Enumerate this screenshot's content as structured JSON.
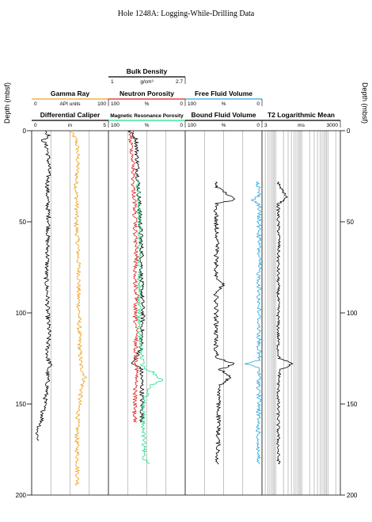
{
  "title": "Hole 1248A: Logging-While-Drilling Data",
  "depth_axis": {
    "label": "Depth (mbsf)",
    "ticks": [
      0,
      50,
      100,
      150,
      200
    ],
    "range": [
      0,
      200
    ]
  },
  "colors": {
    "gamma_ray": "#f0a020",
    "caliper": "#000000",
    "density": "#000000",
    "neutron": "#e02020",
    "mrp": "#22dd88",
    "ffv": "#2aa8e0",
    "bfv": "#000000",
    "t2": "#000000"
  },
  "tracks": [
    {
      "id": "track1",
      "headers": [
        {
          "title": "Gamma Ray",
          "min": "0",
          "unit": "API units",
          "max": "100",
          "color": "#f0a020"
        },
        {
          "title": "Differential Caliper",
          "min": "0",
          "unit": "in",
          "max": "5",
          "color": "#000000"
        }
      ]
    },
    {
      "id": "track2",
      "headers": [
        {
          "title": "Bulk Density",
          "min": "1",
          "unit": "g/cm³",
          "max": "2.7",
          "color": "#000000"
        },
        {
          "title": "Neutron Porosity",
          "min": "100",
          "unit": "%",
          "max": "0",
          "color": "#e02020"
        },
        {
          "title": "Magnetic Resonance Porosity",
          "min": "100",
          "unit": "%",
          "max": "0",
          "color": "#22dd88"
        }
      ]
    },
    {
      "id": "track3",
      "headers": [
        {
          "title": "Free Fluid Volume",
          "min": "100",
          "unit": "%",
          "max": "0",
          "color": "#2aa8e0"
        },
        {
          "title": "Bound Fluid Volume",
          "min": "100",
          "unit": "%",
          "max": "0",
          "color": "#000000"
        }
      ]
    },
    {
      "id": "track4",
      "headers": [
        {
          "title": "T2 Logarithmic Mean",
          "min": "3",
          "unit": "ms",
          "max": "3000",
          "color": "#000000"
        }
      ]
    }
  ],
  "chart_data": {
    "type": "line",
    "y_axis": "depth",
    "series": [
      {
        "name": "Gamma Ray",
        "track": 1,
        "scale": [
          0,
          100
        ],
        "unit": "API units",
        "color": "#f0a020",
        "depth": [
          0,
          5,
          10,
          20,
          30,
          40,
          50,
          60,
          70,
          80,
          90,
          100,
          110,
          120,
          128,
          131,
          135,
          140,
          150,
          160,
          170,
          180,
          190,
          195
        ],
        "values": [
          50,
          58,
          60,
          60,
          58,
          59,
          58,
          60,
          61,
          62,
          61,
          62,
          62,
          63,
          64,
          66,
          70,
          66,
          62,
          60,
          59,
          60,
          60,
          60
        ]
      },
      {
        "name": "Differential Caliper",
        "track": 1,
        "scale": [
          0,
          5
        ],
        "unit": "in",
        "color": "#000000",
        "depth": [
          0,
          3,
          5,
          10,
          20,
          30,
          40,
          50,
          60,
          70,
          80,
          90,
          100,
          110,
          120,
          125,
          128,
          132,
          140,
          150,
          160,
          165,
          170
        ],
        "values": [
          0.9,
          1.1,
          0.7,
          1.0,
          1.1,
          1.0,
          1.0,
          1.1,
          1.0,
          1.0,
          0.9,
          1.0,
          1.0,
          1.1,
          1.0,
          1.0,
          1.2,
          1.0,
          1.0,
          0.8,
          0.6,
          0.3,
          0.4
        ]
      },
      {
        "name": "Bulk Density",
        "track": 2,
        "scale": [
          1,
          2.7
        ],
        "unit": "g/cm³",
        "color": "#000000",
        "depth": [
          0,
          5,
          10,
          20,
          30,
          40,
          50,
          60,
          70,
          80,
          90,
          100,
          110,
          120,
          128,
          130,
          140,
          150,
          160
        ],
        "values": [
          1.45,
          1.62,
          1.62,
          1.64,
          1.66,
          1.68,
          1.7,
          1.72,
          1.74,
          1.72,
          1.74,
          1.76,
          1.74,
          1.72,
          1.5,
          1.72,
          1.74,
          1.74,
          1.74
        ]
      },
      {
        "name": "Neutron Porosity",
        "track": 2,
        "scale": [
          100,
          0
        ],
        "unit": "%",
        "color": "#e02020",
        "depth": [
          0,
          5,
          10,
          20,
          30,
          40,
          50,
          60,
          70,
          80,
          90,
          100,
          110,
          120,
          130,
          140,
          150,
          160
        ],
        "values": [
          70,
          72,
          70,
          68,
          68,
          66,
          66,
          65,
          64,
          66,
          64,
          66,
          64,
          65,
          63,
          65,
          66,
          66
        ]
      },
      {
        "name": "Magnetic Resonance Porosity",
        "track": 2,
        "scale": [
          100,
          0
        ],
        "unit": "%",
        "color": "#22dd88",
        "depth": [
          27,
          30,
          40,
          50,
          60,
          66,
          70,
          80,
          90,
          100,
          110,
          120,
          130,
          133,
          137,
          140,
          150,
          160,
          170,
          180,
          183
        ],
        "values": [
          60,
          62,
          60,
          60,
          60,
          58,
          60,
          60,
          60,
          60,
          60,
          58,
          55,
          40,
          30,
          45,
          55,
          55,
          54,
          54,
          45
        ]
      },
      {
        "name": "Free Fluid Volume",
        "track": 3,
        "scale": [
          100,
          0
        ],
        "unit": "%",
        "color": "#2aa8e0",
        "depth": [
          28,
          36,
          38,
          40,
          50,
          60,
          70,
          80,
          90,
          100,
          110,
          120,
          126,
          128,
          130,
          140,
          150,
          160,
          170,
          183
        ],
        "values": [
          4,
          3,
          12,
          3,
          3,
          3,
          3,
          3,
          3,
          3,
          3,
          3,
          3,
          22,
          3,
          3,
          3,
          4,
          4,
          4
        ]
      },
      {
        "name": "Bound Fluid Volume",
        "track": 3,
        "scale": [
          100,
          0
        ],
        "unit": "%",
        "color": "#000000",
        "depth": [
          28,
          30,
          38,
          40,
          50,
          60,
          70,
          80,
          84,
          90,
          100,
          110,
          120,
          125,
          128,
          131,
          135,
          140,
          150,
          160,
          170,
          180,
          183
        ],
        "values": [
          60,
          62,
          35,
          60,
          60,
          58,
          60,
          60,
          50,
          60,
          60,
          60,
          60,
          58,
          35,
          55,
          40,
          55,
          57,
          57,
          57,
          58,
          58
        ]
      },
      {
        "name": "T2 Logarithmic Mean",
        "track": 4,
        "scale": [
          3,
          3000
        ],
        "log": true,
        "unit": "ms",
        "color": "#000000",
        "depth": [
          28,
          30,
          37,
          40,
          50,
          60,
          70,
          80,
          90,
          100,
          110,
          120,
          125,
          128,
          131,
          140,
          150,
          160,
          170,
          180,
          183
        ],
        "values": [
          12,
          13,
          25,
          12,
          12,
          13,
          12,
          12,
          12,
          12,
          12,
          12,
          13,
          40,
          14,
          12,
          12,
          12,
          12,
          12,
          13
        ]
      }
    ]
  }
}
